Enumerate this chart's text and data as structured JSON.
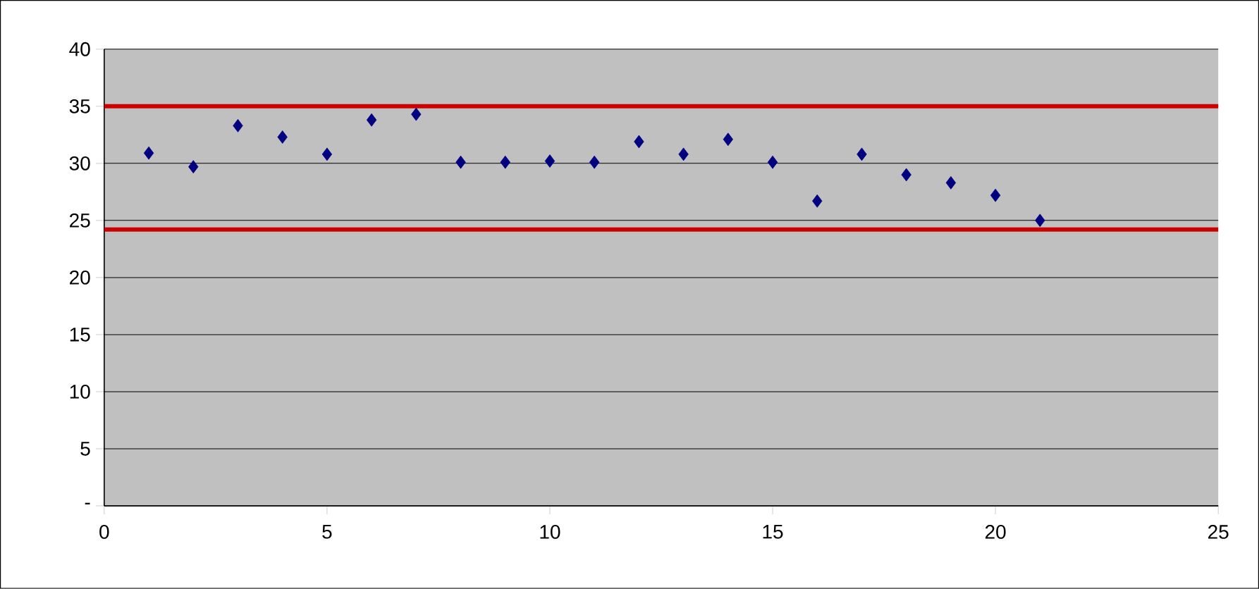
{
  "chart_data": {
    "type": "scatter",
    "x": [
      1,
      2,
      3,
      4,
      5,
      6,
      7,
      8,
      9,
      10,
      11,
      12,
      13,
      14,
      15,
      16,
      17,
      18,
      19,
      20,
      21
    ],
    "series": [
      {
        "color": "#000080",
        "marker": "diamond",
        "values": [
          30.9,
          29.7,
          33.3,
          32.3,
          30.8,
          33.8,
          34.3,
          30.1,
          30.1,
          30.2,
          30.1,
          31.9,
          30.8,
          32.1,
          30.1,
          26.7,
          30.8,
          29.0,
          28.3,
          27.2,
          25.0
        ]
      }
    ],
    "ref_lines": [
      {
        "axis": "y",
        "value": 35,
        "color": "#cc0000",
        "line_style": "solid"
      },
      {
        "axis": "y",
        "value": 24.2,
        "color": "#cc0000",
        "line_style": "solid"
      }
    ],
    "xlim": [
      0,
      25
    ],
    "ylim": [
      0,
      40
    ],
    "xticks": [
      0,
      5,
      10,
      15,
      20,
      25
    ],
    "yticks": [
      {
        "value": 0,
        "label": "-"
      },
      5,
      10,
      15,
      20,
      25,
      30,
      35,
      40
    ],
    "grid": "y"
  }
}
